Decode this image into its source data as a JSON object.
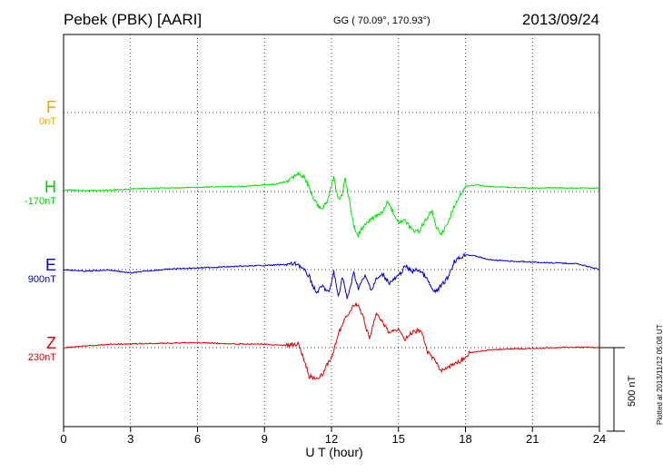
{
  "header": {
    "station": "Pebek (PBK)  [AARI]",
    "coords": "GG ( 70.09°, 170.93°)",
    "date": "2013/09/24"
  },
  "colors": {
    "F": "#f5a000",
    "H": "#00e000",
    "E": "#0000d0",
    "Z": "#e00000"
  },
  "plotted_note": "Plotted at 2013/11/12 05:08 UT",
  "scale": {
    "value_nT": 500,
    "label": "500 nT"
  },
  "chart_data": {
    "type": "line",
    "title": "",
    "xlabel": "U T (hour)",
    "ylabel": "",
    "xlim": [
      0,
      24
    ],
    "xticks": [
      0,
      3,
      6,
      9,
      12,
      15,
      18,
      21,
      24
    ],
    "grid": true,
    "y_unit": "nT",
    "series": [
      {
        "name": "F",
        "baseline": "0nT",
        "x": [],
        "values": []
      },
      {
        "name": "H",
        "baseline": "-170nT",
        "x": [
          0,
          1,
          2,
          3,
          4,
          5,
          6,
          7,
          8,
          9,
          9.5,
          10,
          10.3,
          10.5,
          10.7,
          10.9,
          11,
          11.2,
          11.4,
          11.6,
          11.8,
          12,
          12.1,
          12.3,
          12.5,
          12.6,
          12.8,
          13,
          13.2,
          13.5,
          14,
          14.3,
          14.5,
          14.8,
          15,
          15.3,
          15.6,
          15.9,
          16.2,
          16.5,
          16.7,
          16.9,
          17.2,
          17.5,
          17.8,
          18,
          18.5,
          19,
          20,
          21,
          22,
          23,
          24
        ],
        "values": [
          -160,
          -165,
          -162,
          -155,
          -150,
          -148,
          -145,
          -140,
          -140,
          -130,
          -125,
          -110,
          -80,
          -65,
          -75,
          -110,
          -150,
          -210,
          -260,
          -270,
          -230,
          -140,
          -90,
          -220,
          -180,
          -90,
          -220,
          -380,
          -430,
          -360,
          -320,
          -290,
          -230,
          -300,
          -360,
          -340,
          -400,
          -410,
          -340,
          -290,
          -380,
          -430,
          -360,
          -260,
          -180,
          -140,
          -130,
          -140,
          -145,
          -150,
          -148,
          -150,
          -150
        ]
      },
      {
        "name": "E",
        "baseline": "900nT",
        "x": [
          0,
          1,
          2,
          3,
          4,
          5,
          6,
          7,
          8,
          9,
          10,
          10.5,
          11,
          11.3,
          11.6,
          11.9,
          12.1,
          12.3,
          12.5,
          12.7,
          13,
          13.2,
          13.5,
          13.8,
          14,
          14.3,
          14.6,
          15,
          15.3,
          15.6,
          15.9,
          16.2,
          16.6,
          16.9,
          17.2,
          17.5,
          18,
          18.5,
          19,
          20,
          21,
          22,
          23,
          24
        ],
        "values": [
          900,
          890,
          898,
          880,
          895,
          905,
          910,
          915,
          920,
          925,
          930,
          935,
          860,
          760,
          800,
          760,
          890,
          740,
          860,
          720,
          880,
          790,
          860,
          780,
          840,
          870,
          820,
          860,
          920,
          890,
          900,
          860,
          760,
          800,
          850,
          950,
          990,
          980,
          960,
          950,
          945,
          940,
          935,
          900
        ]
      },
      {
        "name": "Z",
        "baseline": "230nT",
        "x": [
          0,
          1,
          2,
          3,
          4,
          5,
          6,
          7,
          8,
          9,
          10,
          10.5,
          10.8,
          11,
          11.3,
          11.6,
          11.9,
          12.1,
          12.3,
          12.6,
          12.9,
          13.1,
          13.4,
          13.7,
          14,
          14.3,
          14.6,
          15,
          15.3,
          15.6,
          16,
          16.3,
          16.6,
          16.9,
          17.2,
          17.5,
          17.8,
          18.2,
          19,
          20,
          21,
          22,
          23,
          24
        ],
        "values": [
          230,
          240,
          250,
          252,
          255,
          258,
          260,
          255,
          252,
          250,
          245,
          255,
          150,
          60,
          40,
          70,
          150,
          210,
          310,
          400,
          460,
          500,
          420,
          280,
          440,
          380,
          310,
          350,
          280,
          320,
          340,
          200,
          160,
          90,
          110,
          130,
          150,
          200,
          215,
          222,
          225,
          230,
          233,
          230
        ]
      }
    ]
  }
}
